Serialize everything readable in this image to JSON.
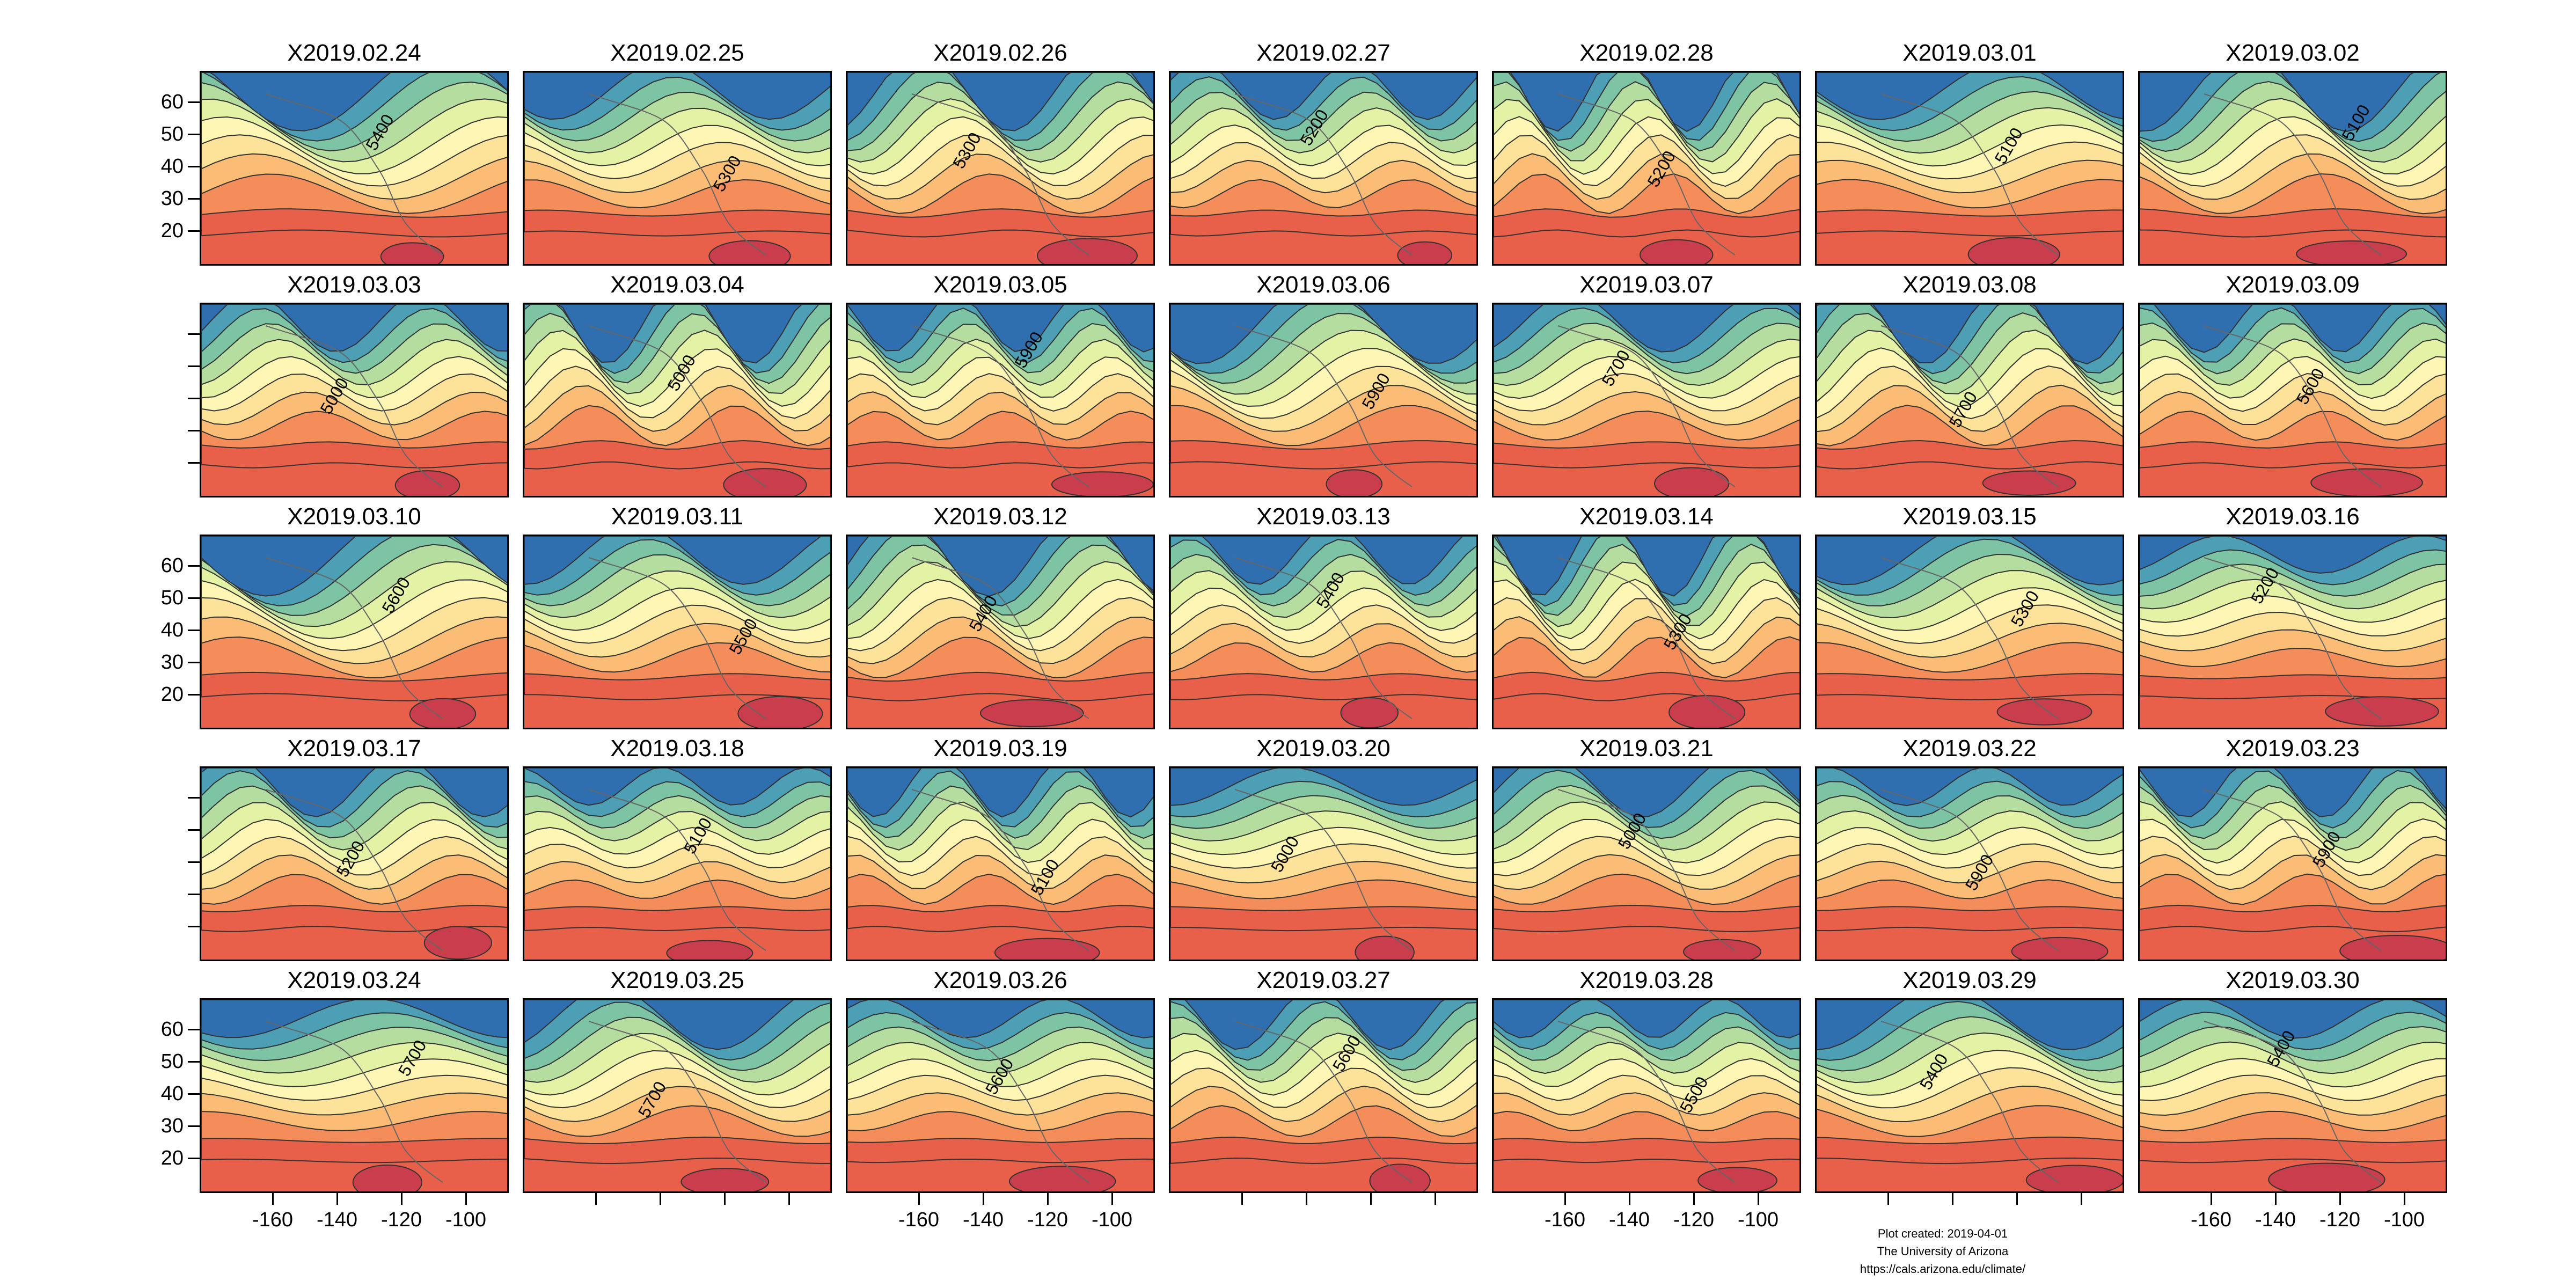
{
  "figure": {
    "panels": [
      {
        "date": "X2019.02.24"
      },
      {
        "date": "X2019.02.25"
      },
      {
        "date": "X2019.02.26"
      },
      {
        "date": "X2019.02.27"
      },
      {
        "date": "X2019.02.28"
      },
      {
        "date": "X2019.03.01"
      },
      {
        "date": "X2019.03.02"
      },
      {
        "date": "X2019.03.03"
      },
      {
        "date": "X2019.03.04"
      },
      {
        "date": "X2019.03.05"
      },
      {
        "date": "X2019.03.06"
      },
      {
        "date": "X2019.03.07"
      },
      {
        "date": "X2019.03.08"
      },
      {
        "date": "X2019.03.09"
      },
      {
        "date": "X2019.03.10"
      },
      {
        "date": "X2019.03.11"
      },
      {
        "date": "X2019.03.12"
      },
      {
        "date": "X2019.03.13"
      },
      {
        "date": "X2019.03.14"
      },
      {
        "date": "X2019.03.15"
      },
      {
        "date": "X2019.03.16"
      },
      {
        "date": "X2019.03.17"
      },
      {
        "date": "X2019.03.18"
      },
      {
        "date": "X2019.03.19"
      },
      {
        "date": "X2019.03.20"
      },
      {
        "date": "X2019.03.21"
      },
      {
        "date": "X2019.03.22"
      },
      {
        "date": "X2019.03.23"
      },
      {
        "date": "X2019.03.24"
      },
      {
        "date": "X2019.03.25"
      },
      {
        "date": "X2019.03.26"
      },
      {
        "date": "X2019.03.27"
      },
      {
        "date": "X2019.03.28"
      },
      {
        "date": "X2019.03.29"
      },
      {
        "date": "X2019.03.30"
      }
    ],
    "grid": {
      "rows": 5,
      "cols": 7
    },
    "y_ticks": [
      "60",
      "50",
      "40",
      "30",
      "20"
    ],
    "x_ticks": [
      "-160",
      "-140",
      "-120",
      "-100"
    ],
    "y_tick_label_rows": [
      0,
      2,
      4
    ],
    "x_tick_label_cols": [
      0,
      2,
      4,
      6
    ],
    "contour_labels": [
      "5000",
      "5100",
      "5200",
      "5300",
      "5400",
      "5500",
      "5600",
      "5700",
      "5900"
    ],
    "fill_colors": [
      "#2f6fb0",
      "#4c9fb4",
      "#7cc4a4",
      "#b5dda0",
      "#e3f2a4",
      "#fdf6b4",
      "#fde29a",
      "#fbbd76",
      "#f48d5a",
      "#e8604a",
      "#c93d4d"
    ],
    "footer": {
      "line1": "Plot created: 2019-04-01",
      "line2": "The University of Arizona",
      "line3": "https://cals.arizona.edu/climate/"
    }
  }
}
